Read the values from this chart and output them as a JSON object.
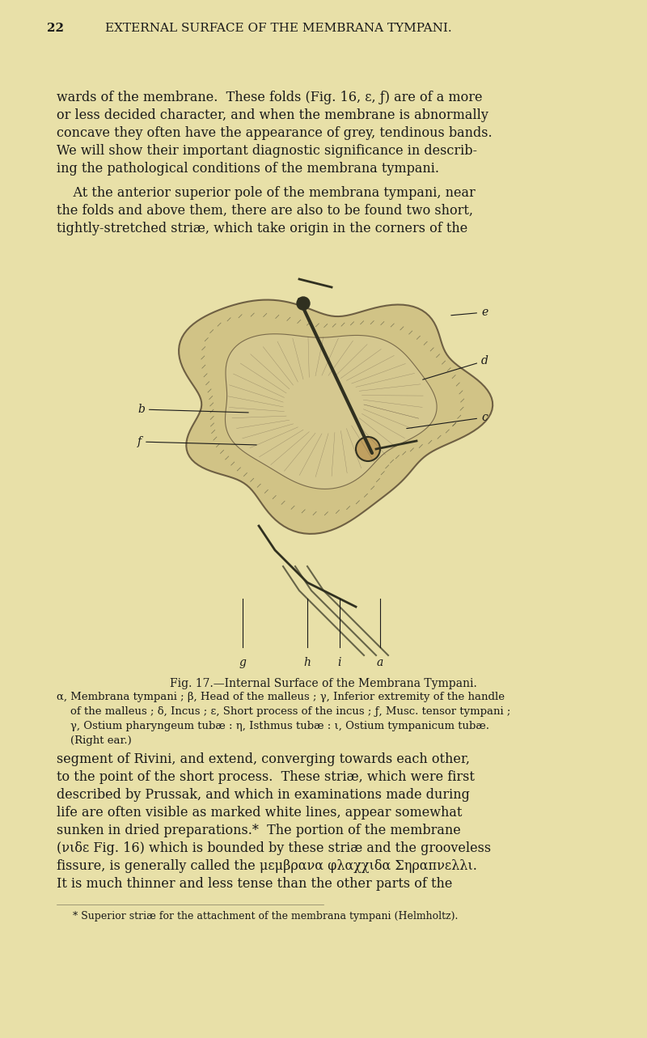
{
  "bg_color": "#e8e0a8",
  "page_color": "#ddd8a0",
  "header_number": "22",
  "header_title": "EXTERNAL SURFACE OF THE MEMBRANA TYMPANI.",
  "header_fontsize": 11,
  "body_fontsize": 11.5,
  "caption_fontsize": 9.5,
  "footnote_fontsize": 9,
  "paragraph1": "wards of the membrane.  These folds (Fig. 16, ε, ƒ) are of a more\nor less decided character, and when the membrane is abnormally\nconcave they often have the appearance of grey, tendinous bands.\nWe will show their important diagnostic significance in describ-\ning the pathological conditions of the membrana tympani.",
  "paragraph2": "At the anterior superior pole of the membrana tympani, near\nthe folds and above them, there are also to be found two short,\ntightly-stretched striæ, which take origin in the corners of the",
  "fig_caption_title": "Fig. 17.—Internal Surface of the Membrana Tympani.",
  "fig_caption_body": "α, Membrana tympani ; β, Head of the malleus ; γ, Inferior extremity of the handle\n    of the malleus ; δ, Incus ; ε, Short process of the incus ; ƒ, Musc. tensor tympani ;\n    γ, Ostium pharyngeum tubæ : η, Isthmus tubæ : ι, Ostium tympanicum tubæ.\n    (Right ear.)",
  "paragraph3": "segment of Rivini, and extend, converging towards each other,\nto the point of the short process.  These striæ, which were first\ndescribed by Prussak, and which in examinations made during\nlife are often visible as marked white lines, appear somewhat\nsunken in dried preparations.*  The portion of the membrane\n(νιδε Fig. 16) which is bounded by these striæ and the grooveless\nfissure, is generally called the μεμβρανα φλαχχιδα Σηραπνελλι.\nIt is much thinner and less tense than the other parts of the",
  "footnote": "* Superior striæ for the attachment of the membrana tympani (Helmholtz)."
}
